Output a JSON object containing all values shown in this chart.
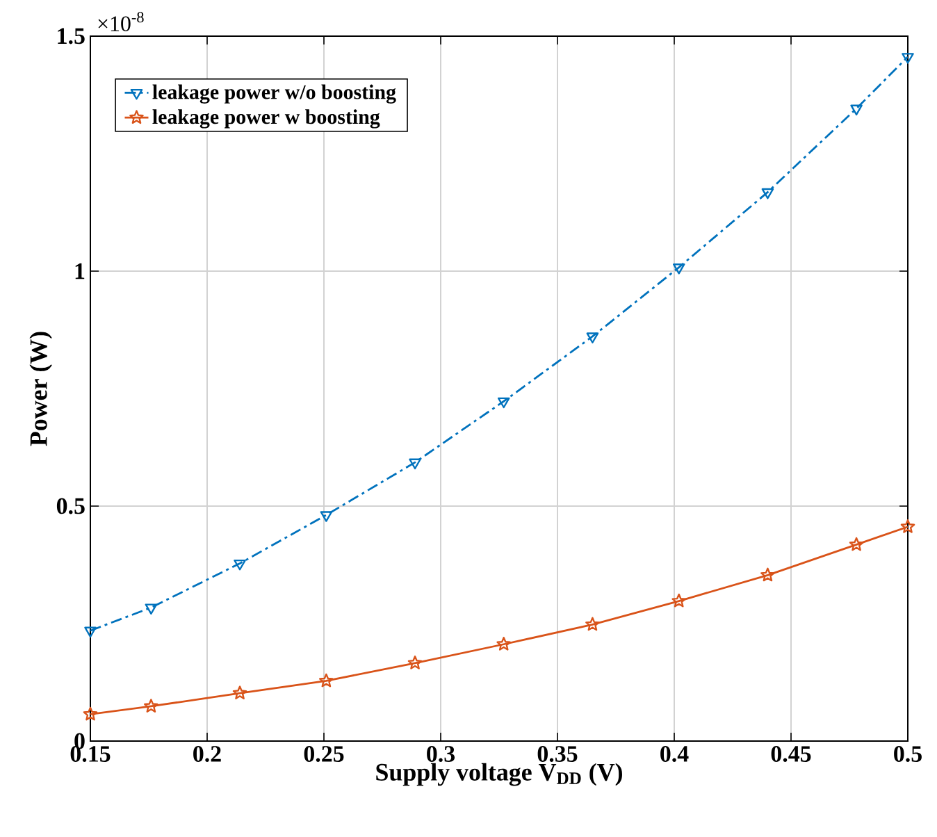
{
  "chart_data": {
    "type": "line",
    "xlabel": "Supply voltage V$_{DD}$ (V)",
    "ylabel": "Power (W)",
    "annotations": [
      "×10$^{-8}$"
    ],
    "xlim": [
      0.15,
      0.5
    ],
    "ylim": [
      0,
      1.5
    ],
    "xticks": [
      0.15,
      0.2,
      0.25,
      0.3,
      0.35,
      0.4,
      0.45,
      0.5
    ],
    "yticks": [
      0,
      0.5,
      1,
      1.5
    ],
    "grid": true,
    "legend": "top left",
    "x": [
      0.15,
      0.176,
      0.214,
      0.251,
      0.289,
      0.327,
      0.365,
      0.402,
      0.44,
      0.478,
      0.5
    ],
    "series": [
      {
        "name": "leakage power w/o boosting",
        "color": "#0072bd",
        "marker": "triangle",
        "line_style": "dashdot",
        "values": [
          0.235,
          0.284,
          0.378,
          0.481,
          0.593,
          0.723,
          0.861,
          1.008,
          1.168,
          1.346,
          1.456
        ]
      },
      {
        "name": "leakage power w boosting",
        "color": "#d95319",
        "marker": "star",
        "line_style": "solid",
        "values": [
          0.057,
          0.074,
          0.102,
          0.128,
          0.166,
          0.206,
          0.248,
          0.298,
          0.353,
          0.418,
          0.456
        ]
      }
    ]
  }
}
